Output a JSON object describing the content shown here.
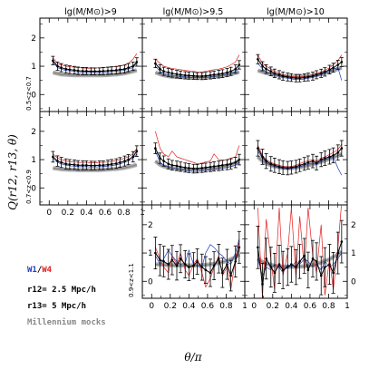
{
  "figure": {
    "col_titles": [
      "lg(M/M⊙)>9",
      "lg(M/M⊙)>9.5",
      "lg(M/M⊙)>10"
    ],
    "row_labels": [
      "0.5<z<0.7",
      "0.7<z<0.9",
      "0.9<z<1.1"
    ],
    "ylabel": "Q(r12, r13, θ)",
    "xlabel": "θ/π",
    "legend": {
      "w1": "W1",
      "slash": "/",
      "w4": "W4",
      "r12": "r12= 2.5 Mpc/h",
      "r13": "r13= 5 Mpc/h",
      "mocks": "Millennium mocks"
    },
    "colors": {
      "W1": "#1f3fbf",
      "W4": "#e02020",
      "data": "#000000",
      "mocks": "#808080",
      "mocks_band": "#a0a0a0"
    }
  },
  "chart_data": {
    "type": "line",
    "x": [
      0.04,
      0.09,
      0.13,
      0.18,
      0.22,
      0.27,
      0.31,
      0.36,
      0.4,
      0.45,
      0.49,
      0.54,
      0.58,
      0.63,
      0.67,
      0.72,
      0.76,
      0.81,
      0.85,
      0.9,
      0.94
    ],
    "xlim": [
      -0.1,
      1.0
    ],
    "ylim": [
      -0.6,
      2.7
    ],
    "xticks": [
      "0",
      "0.2",
      "0.4",
      "0.6",
      "0.8",
      "1"
    ],
    "yticks_upper": [
      "0",
      "1",
      "2"
    ],
    "yticks_bottom": [
      "0",
      "1",
      "2"
    ],
    "panels": [
      {
        "row": 0,
        "col": 0,
        "data": [
          1.2,
          1.0,
          0.95,
          0.9,
          0.88,
          0.86,
          0.84,
          0.83,
          0.83,
          0.82,
          0.82,
          0.82,
          0.83,
          0.84,
          0.85,
          0.86,
          0.88,
          0.9,
          0.95,
          1.0,
          1.15
        ],
        "err": 0.12,
        "W1": [
          1.15,
          0.95,
          0.9,
          0.85,
          0.84,
          0.82,
          0.8,
          0.8,
          0.79,
          0.79,
          0.79,
          0.79,
          0.8,
          0.8,
          0.82,
          0.83,
          0.84,
          0.86,
          0.9,
          0.95,
          1.1
        ],
        "W4": [
          1.3,
          1.1,
          1.05,
          1.0,
          0.98,
          0.97,
          0.95,
          0.94,
          0.93,
          0.93,
          0.94,
          0.94,
          0.95,
          0.96,
          0.97,
          0.99,
          1.0,
          1.05,
          1.1,
          1.25,
          1.45
        ],
        "mocks": [
          0.78,
          0.74,
          0.71,
          0.7,
          0.69,
          0.68,
          0.68,
          0.68,
          0.68,
          0.68,
          0.68,
          0.68,
          0.68,
          0.69,
          0.7,
          0.71,
          0.73,
          0.75,
          0.78,
          0.82,
          0.86
        ]
      },
      {
        "row": 0,
        "col": 1,
        "data": [
          1.1,
          0.9,
          0.82,
          0.78,
          0.75,
          0.72,
          0.7,
          0.68,
          0.67,
          0.66,
          0.65,
          0.65,
          0.66,
          0.68,
          0.7,
          0.72,
          0.74,
          0.78,
          0.82,
          0.9,
          1.05
        ],
        "err": 0.12,
        "W1": [
          1.0,
          0.82,
          0.75,
          0.7,
          0.68,
          0.66,
          0.64,
          0.62,
          0.61,
          0.6,
          0.6,
          0.6,
          0.61,
          0.62,
          0.64,
          0.66,
          0.68,
          0.72,
          0.75,
          0.82,
          0.95
        ],
        "W4": [
          1.25,
          1.1,
          1.0,
          0.95,
          0.92,
          0.9,
          0.88,
          0.85,
          0.84,
          0.82,
          0.8,
          0.8,
          0.82,
          0.85,
          0.88,
          0.9,
          0.93,
          0.98,
          1.05,
          1.15,
          1.4
        ],
        "mocks": [
          0.78,
          0.72,
          0.68,
          0.65,
          0.63,
          0.62,
          0.61,
          0.61,
          0.6,
          0.6,
          0.6,
          0.6,
          0.61,
          0.62,
          0.63,
          0.65,
          0.67,
          0.69,
          0.72,
          0.76,
          0.8
        ]
      },
      {
        "row": 0,
        "col": 2,
        "data": [
          1.25,
          1.0,
          0.9,
          0.82,
          0.75,
          0.7,
          0.65,
          0.62,
          0.6,
          0.58,
          0.58,
          0.6,
          0.62,
          0.65,
          0.7,
          0.75,
          0.8,
          0.88,
          0.95,
          1.05,
          1.15
        ],
        "err": 0.13,
        "W1": [
          1.1,
          0.9,
          0.8,
          0.75,
          0.7,
          0.65,
          0.6,
          0.58,
          0.55,
          0.53,
          0.53,
          0.55,
          0.58,
          0.6,
          0.65,
          0.7,
          0.75,
          0.82,
          0.9,
          0.95,
          0.5
        ],
        "W4": [
          1.4,
          1.1,
          1.0,
          0.9,
          0.82,
          0.76,
          0.7,
          0.66,
          0.64,
          0.62,
          0.62,
          0.64,
          0.66,
          0.7,
          0.75,
          0.8,
          0.86,
          0.95,
          1.05,
          1.2,
          1.4
        ],
        "mocks": [
          0.85,
          0.8,
          0.76,
          0.72,
          0.69,
          0.67,
          0.65,
          0.64,
          0.63,
          0.63,
          0.63,
          0.64,
          0.65,
          0.67,
          0.69,
          0.72,
          0.76,
          0.8,
          0.85,
          0.9,
          0.95
        ]
      },
      {
        "row": 1,
        "col": 0,
        "data": [
          1.1,
          0.95,
          0.9,
          0.85,
          0.83,
          0.82,
          0.8,
          0.8,
          0.8,
          0.79,
          0.79,
          0.8,
          0.8,
          0.82,
          0.84,
          0.86,
          0.9,
          0.95,
          1.0,
          1.1,
          1.3
        ],
        "err": 0.15,
        "W1": [
          1.05,
          0.9,
          0.85,
          0.8,
          0.78,
          0.77,
          0.75,
          0.75,
          0.75,
          0.74,
          0.74,
          0.75,
          0.75,
          0.77,
          0.79,
          0.81,
          0.85,
          0.9,
          0.95,
          1.05,
          1.2
        ],
        "W4": [
          1.2,
          1.05,
          1.0,
          0.95,
          0.93,
          0.92,
          0.9,
          0.9,
          0.9,
          0.89,
          0.89,
          0.9,
          0.9,
          0.92,
          0.94,
          0.96,
          1.0,
          1.05,
          1.1,
          1.2,
          1.4
        ],
        "mocks": [
          0.7,
          0.68,
          0.66,
          0.65,
          0.64,
          0.64,
          0.63,
          0.63,
          0.63,
          0.63,
          0.63,
          0.63,
          0.64,
          0.65,
          0.66,
          0.67,
          0.69,
          0.71,
          0.74,
          0.78,
          0.82
        ]
      },
      {
        "row": 1,
        "col": 1,
        "data": [
          1.4,
          1.05,
          0.95,
          0.85,
          0.8,
          0.78,
          0.75,
          0.72,
          0.7,
          0.68,
          0.68,
          0.7,
          0.72,
          0.74,
          0.76,
          0.78,
          0.8,
          0.82,
          0.85,
          0.9,
          1.0
        ],
        "err": 0.15,
        "W1": [
          1.3,
          0.9,
          0.8,
          0.75,
          0.7,
          0.68,
          0.65,
          0.62,
          0.6,
          0.58,
          0.58,
          0.6,
          0.62,
          0.64,
          0.66,
          0.68,
          0.7,
          0.72,
          0.75,
          0.8,
          0.9
        ],
        "W4": [
          2.0,
          1.4,
          1.2,
          1.1,
          1.3,
          1.1,
          1.05,
          1.0,
          0.95,
          0.9,
          0.85,
          0.88,
          0.92,
          0.95,
          1.2,
          1.0,
          0.98,
          1.0,
          1.05,
          1.1,
          1.5
        ],
        "mocks": [
          0.95,
          0.82,
          0.76,
          0.72,
          0.7,
          0.68,
          0.67,
          0.66,
          0.65,
          0.65,
          0.65,
          0.66,
          0.67,
          0.68,
          0.7,
          0.72,
          0.75,
          0.78,
          0.82,
          0.88,
          0.95
        ]
      },
      {
        "row": 1,
        "col": 2,
        "data": [
          1.4,
          1.1,
          0.95,
          0.85,
          0.8,
          0.75,
          0.72,
          0.7,
          0.72,
          0.75,
          0.8,
          0.85,
          0.9,
          0.95,
          0.88,
          1.0,
          1.05,
          1.1,
          1.15,
          1.25,
          1.4
        ],
        "err": 0.22,
        "W1": [
          1.3,
          1.05,
          0.9,
          0.8,
          0.75,
          0.7,
          0.68,
          0.66,
          0.68,
          0.7,
          0.75,
          0.8,
          0.85,
          0.88,
          0.82,
          0.95,
          1.0,
          1.05,
          1.1,
          0.7,
          0.45
        ],
        "W4": [
          1.5,
          1.15,
          1.0,
          0.9,
          0.85,
          0.8,
          0.76,
          0.74,
          0.76,
          0.8,
          0.86,
          0.92,
          0.96,
          1.0,
          0.95,
          1.05,
          1.1,
          1.18,
          1.25,
          1.35,
          1.55
        ],
        "mocks": [
          1.1,
          0.95,
          0.86,
          0.8,
          0.76,
          0.73,
          0.71,
          0.7,
          0.7,
          0.71,
          0.73,
          0.76,
          0.8,
          0.84,
          0.88,
          0.92,
          0.97,
          1.02,
          1.08,
          1.14,
          1.2
        ]
      },
      {
        "row": 2,
        "col": 1,
        "data": [
          1.0,
          0.75,
          0.7,
          0.6,
          0.75,
          0.55,
          0.8,
          0.6,
          0.5,
          0.55,
          0.7,
          0.5,
          0.4,
          0.3,
          0.55,
          0.8,
          0.3,
          0.6,
          0.2,
          0.7,
          1.2
        ],
        "err": 0.45,
        "W1": [
          0.9,
          0.6,
          0.8,
          1.1,
          0.9,
          0.7,
          0.6,
          0.65,
          1.1,
          0.6,
          0.55,
          0.5,
          1.0,
          1.3,
          1.2,
          1.0,
          0.9,
          0.7,
          0.6,
          1.0,
          1.5
        ],
        "W4": [
          1.2,
          0.8,
          0.5,
          0.3,
          0.9,
          0.6,
          1.0,
          0.4,
          0.2,
          0.6,
          0.8,
          0.3,
          -0.2,
          0.1,
          0.5,
          0.9,
          0.2,
          0.5,
          -0.3,
          0.8,
          1.4
        ],
        "mocks": [
          0.6,
          0.59,
          0.58,
          0.57,
          0.57,
          0.56,
          0.56,
          0.56,
          0.56,
          0.56,
          0.56,
          0.57,
          0.58,
          0.6,
          0.62,
          0.65,
          0.68,
          0.72,
          0.78,
          0.85,
          0.95
        ]
      },
      {
        "row": 2,
        "col": 2,
        "data": [
          1.2,
          -0.1,
          0.8,
          0.5,
          0.3,
          0.6,
          0.4,
          0.5,
          0.6,
          0.5,
          0.7,
          0.9,
          0.4,
          0.8,
          0.7,
          0.2,
          0.5,
          0.6,
          0.3,
          1.0,
          1.4
        ],
        "err": 0.6,
        "W1": [
          0.8,
          0.2,
          0.5,
          0.4,
          0.6,
          0.5,
          0.3,
          0.6,
          0.5,
          0.7,
          0.6,
          0.8,
          0.7,
          0.5,
          0.6,
          0.4,
          0.7,
          0.5,
          0.6,
          0.8,
          1.0
        ],
        "W4": [
          2.6,
          -0.6,
          2.2,
          0.8,
          -0.3,
          2.6,
          0.2,
          1.0,
          2.6,
          0.1,
          2.3,
          0.4,
          2.6,
          0.9,
          0.3,
          2.0,
          -0.5,
          0.8,
          -0.3,
          1.2,
          2.8
        ],
        "mocks": [
          0.8,
          0.68,
          0.62,
          0.58,
          0.55,
          0.53,
          0.52,
          0.51,
          0.51,
          0.51,
          0.52,
          0.53,
          0.55,
          0.58,
          0.62,
          0.66,
          0.72,
          0.78,
          0.86,
          0.95,
          1.05
        ]
      }
    ]
  }
}
